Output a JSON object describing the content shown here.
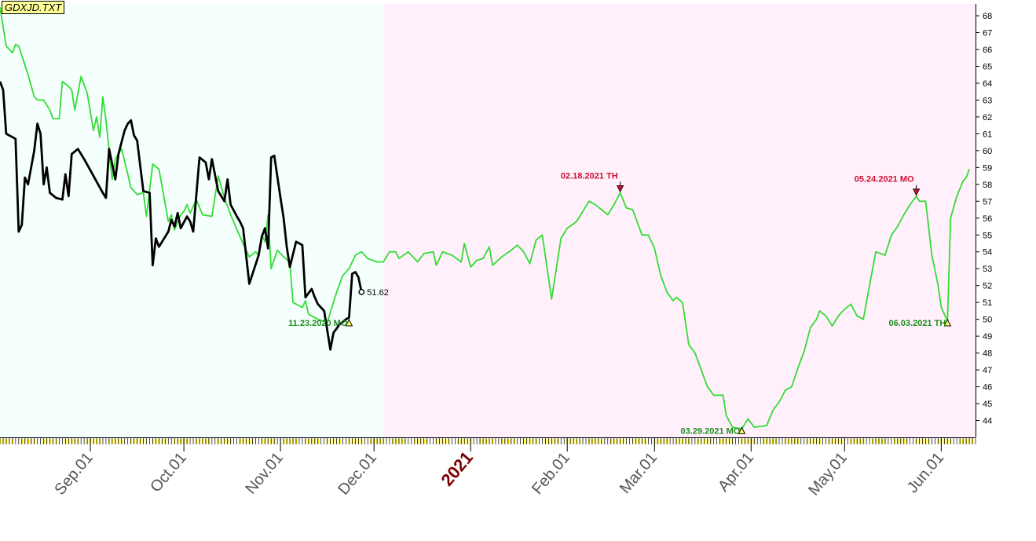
{
  "file_label": "GDXJD.TXT",
  "chart_data": {
    "type": "line",
    "x_unit": "date",
    "xlim": [
      "2020-08-03",
      "2021-06-12"
    ],
    "ylim": [
      43.0,
      68.7
    ],
    "y_ticks": [
      44,
      45,
      46,
      47,
      48,
      49,
      50,
      51,
      52,
      53,
      54,
      55,
      56,
      57,
      58,
      59,
      60,
      61,
      62,
      63,
      64,
      65,
      66,
      67,
      68
    ],
    "x_tick_labels": [
      {
        "date": "2020-09-01",
        "label": "Sep.01",
        "highlight": false
      },
      {
        "date": "2020-10-01",
        "label": "Oct.01",
        "highlight": false
      },
      {
        "date": "2020-11-01",
        "label": "Nov.01",
        "highlight": false
      },
      {
        "date": "2020-12-01",
        "label": "Dec.01",
        "highlight": false
      },
      {
        "date": "2021-01-01",
        "label": "2021",
        "highlight": true
      },
      {
        "date": "2021-02-01",
        "label": "Feb.01",
        "highlight": false
      },
      {
        "date": "2021-03-01",
        "label": "Mar.01",
        "highlight": false
      },
      {
        "date": "2021-04-01",
        "label": "Apr.01",
        "highlight": false
      },
      {
        "date": "2021-05-01",
        "label": "May.01",
        "highlight": false
      },
      {
        "date": "2021-06-01",
        "label": "Jun.01",
        "highlight": false
      }
    ],
    "regions": [
      {
        "from": "2020-08-03",
        "to": "2020-12-04",
        "color": "#f5fffe"
      },
      {
        "from": "2020-12-04",
        "to": "2021-06-12",
        "color": "#fff0fb"
      }
    ],
    "series": [
      {
        "color": "#000000",
        "points": [
          [
            "2020-08-03",
            64.1
          ],
          [
            "2020-08-04",
            63.6
          ],
          [
            "2020-08-05",
            61.0
          ],
          [
            "2020-08-07",
            60.8
          ],
          [
            "2020-08-08",
            60.7
          ],
          [
            "2020-08-09",
            55.2
          ],
          [
            "2020-08-10",
            55.6
          ],
          [
            "2020-08-11",
            58.4
          ],
          [
            "2020-08-12",
            58.0
          ],
          [
            "2020-08-14",
            60.0
          ],
          [
            "2020-08-15",
            61.6
          ],
          [
            "2020-08-16",
            61.0
          ],
          [
            "2020-08-17",
            58.0
          ],
          [
            "2020-08-18",
            59.0
          ],
          [
            "2020-08-19",
            57.5
          ],
          [
            "2020-08-21",
            57.2
          ],
          [
            "2020-08-23",
            57.1
          ],
          [
            "2020-08-24",
            58.6
          ],
          [
            "2020-08-25",
            57.3
          ],
          [
            "2020-08-26",
            59.8
          ],
          [
            "2020-08-28",
            60.1
          ],
          [
            "2020-08-30",
            59.5
          ],
          [
            "2020-09-02",
            58.5
          ],
          [
            "2020-09-05",
            57.5
          ],
          [
            "2020-09-06",
            57.2
          ],
          [
            "2020-09-07",
            60.1
          ],
          [
            "2020-09-09",
            58.3
          ],
          [
            "2020-09-10",
            59.8
          ],
          [
            "2020-09-12",
            61.2
          ],
          [
            "2020-09-13",
            61.6
          ],
          [
            "2020-09-14",
            61.8
          ],
          [
            "2020-09-15",
            60.9
          ],
          [
            "2020-09-16",
            60.6
          ],
          [
            "2020-09-18",
            57.6
          ],
          [
            "2020-09-20",
            57.5
          ],
          [
            "2020-09-21",
            53.2
          ],
          [
            "2020-09-22",
            54.8
          ],
          [
            "2020-09-23",
            54.3
          ],
          [
            "2020-09-26",
            55.2
          ],
          [
            "2020-09-27",
            55.9
          ],
          [
            "2020-09-28",
            55.5
          ],
          [
            "2020-09-29",
            56.3
          ],
          [
            "2020-09-30",
            55.4
          ],
          [
            "2020-10-02",
            56.1
          ],
          [
            "2020-10-03",
            55.8
          ],
          [
            "2020-10-04",
            55.2
          ],
          [
            "2020-10-06",
            59.6
          ],
          [
            "2020-10-08",
            59.3
          ],
          [
            "2020-10-09",
            58.3
          ],
          [
            "2020-10-10",
            59.5
          ],
          [
            "2020-10-12",
            57.6
          ],
          [
            "2020-10-14",
            57.0
          ],
          [
            "2020-10-15",
            58.3
          ],
          [
            "2020-10-16",
            56.8
          ],
          [
            "2020-10-18",
            56.1
          ],
          [
            "2020-10-19",
            55.8
          ],
          [
            "2020-10-20",
            55.4
          ],
          [
            "2020-10-22",
            52.1
          ],
          [
            "2020-10-25",
            53.8
          ],
          [
            "2020-10-26",
            54.9
          ],
          [
            "2020-10-27",
            55.4
          ],
          [
            "2020-10-28",
            54.2
          ],
          [
            "2020-10-29",
            59.6
          ],
          [
            "2020-10-30",
            59.7
          ],
          [
            "2020-11-01",
            57.2
          ],
          [
            "2020-11-02",
            56.0
          ],
          [
            "2020-11-03",
            54.3
          ],
          [
            "2020-11-04",
            53.1
          ],
          [
            "2020-11-06",
            54.6
          ],
          [
            "2020-11-08",
            54.4
          ],
          [
            "2020-11-09",
            51.3
          ],
          [
            "2020-11-11",
            51.8
          ],
          [
            "2020-11-12",
            51.3
          ],
          [
            "2020-11-13",
            50.9
          ],
          [
            "2020-11-15",
            50.5
          ],
          [
            "2020-11-17",
            48.2
          ],
          [
            "2020-11-18",
            49.2
          ],
          [
            "2020-11-20",
            49.7
          ],
          [
            "2020-11-22",
            50.0
          ],
          [
            "2020-11-23",
            50.1
          ],
          [
            "2020-11-24",
            52.7
          ],
          [
            "2020-11-25",
            52.8
          ],
          [
            "2020-11-26",
            52.5
          ],
          [
            "2020-11-27",
            51.62
          ]
        ]
      },
      {
        "color": "#33dd33",
        "points": [
          [
            "2020-08-03",
            68.5
          ],
          [
            "2020-08-05",
            66.2
          ],
          [
            "2020-08-07",
            65.8
          ],
          [
            "2020-08-08",
            66.3
          ],
          [
            "2020-08-09",
            66.2
          ],
          [
            "2020-08-12",
            64.5
          ],
          [
            "2020-08-14",
            63.2
          ],
          [
            "2020-08-15",
            63.0
          ],
          [
            "2020-08-17",
            63.0
          ],
          [
            "2020-08-19",
            62.4
          ],
          [
            "2020-08-20",
            61.9
          ],
          [
            "2020-08-22",
            61.9
          ],
          [
            "2020-08-23",
            64.1
          ],
          [
            "2020-08-25",
            63.8
          ],
          [
            "2020-08-26",
            63.6
          ],
          [
            "2020-08-27",
            62.4
          ],
          [
            "2020-08-29",
            64.4
          ],
          [
            "2020-08-31",
            63.4
          ],
          [
            "2020-09-02",
            61.2
          ],
          [
            "2020-09-03",
            62.0
          ],
          [
            "2020-09-04",
            60.8
          ],
          [
            "2020-09-05",
            63.2
          ],
          [
            "2020-09-06",
            61.8
          ],
          [
            "2020-09-08",
            58.3
          ],
          [
            "2020-09-09",
            59.5
          ],
          [
            "2020-09-10",
            59.8
          ],
          [
            "2020-09-11",
            60.1
          ],
          [
            "2020-09-13",
            58.6
          ],
          [
            "2020-09-14",
            57.8
          ],
          [
            "2020-09-16",
            57.4
          ],
          [
            "2020-09-18",
            57.5
          ],
          [
            "2020-09-19",
            56.1
          ],
          [
            "2020-09-21",
            59.2
          ],
          [
            "2020-09-23",
            58.9
          ],
          [
            "2020-09-26",
            55.8
          ],
          [
            "2020-09-27",
            56.2
          ],
          [
            "2020-09-28",
            55.3
          ],
          [
            "2020-09-30",
            56.2
          ],
          [
            "2020-10-01",
            56.4
          ],
          [
            "2020-10-02",
            56.8
          ],
          [
            "2020-10-03",
            56.3
          ],
          [
            "2020-10-05",
            57.1
          ],
          [
            "2020-10-07",
            56.2
          ],
          [
            "2020-10-10",
            56.1
          ],
          [
            "2020-10-12",
            58.5
          ],
          [
            "2020-10-14",
            57.2
          ],
          [
            "2020-10-16",
            56.2
          ],
          [
            "2020-10-19",
            54.9
          ],
          [
            "2020-10-22",
            53.7
          ],
          [
            "2020-10-24",
            54.0
          ],
          [
            "2020-10-25",
            53.8
          ],
          [
            "2020-10-26",
            55.0
          ],
          [
            "2020-10-27",
            54.6
          ],
          [
            "2020-10-28",
            56.2
          ],
          [
            "2020-10-29",
            53.0
          ],
          [
            "2020-10-31",
            54.1
          ],
          [
            "2020-11-02",
            53.7
          ],
          [
            "2020-11-04",
            53.4
          ],
          [
            "2020-11-05",
            51.0
          ],
          [
            "2020-11-08",
            50.7
          ],
          [
            "2020-11-09",
            51.1
          ],
          [
            "2020-11-10",
            50.3
          ],
          [
            "2020-11-13",
            50.0
          ],
          [
            "2020-11-16",
            49.8
          ],
          [
            "2020-11-19",
            51.6
          ],
          [
            "2020-11-21",
            52.6
          ],
          [
            "2020-11-23",
            53.0
          ],
          [
            "2020-11-25",
            53.8
          ],
          [
            "2020-11-27",
            54.0
          ],
          [
            "2020-11-29",
            53.6
          ],
          [
            "2020-12-02",
            53.4
          ],
          [
            "2020-12-04",
            53.4
          ],
          [
            "2020-12-06",
            54.0
          ],
          [
            "2020-12-08",
            54.0
          ],
          [
            "2020-12-09",
            53.6
          ],
          [
            "2020-12-12",
            54.0
          ],
          [
            "2020-12-14",
            53.6
          ],
          [
            "2020-12-15",
            53.4
          ],
          [
            "2020-12-17",
            53.9
          ],
          [
            "2020-12-20",
            54.0
          ],
          [
            "2020-12-21",
            53.2
          ],
          [
            "2020-12-23",
            54.0
          ],
          [
            "2020-12-26",
            53.8
          ],
          [
            "2020-12-29",
            53.4
          ],
          [
            "2020-12-30",
            54.5
          ],
          [
            "2021-01-01",
            53.1
          ],
          [
            "2021-01-03",
            53.5
          ],
          [
            "2021-01-05",
            53.6
          ],
          [
            "2021-01-07",
            54.3
          ],
          [
            "2021-01-08",
            53.2
          ],
          [
            "2021-01-11",
            53.7
          ],
          [
            "2021-01-14",
            54.1
          ],
          [
            "2021-01-16",
            54.4
          ],
          [
            "2021-01-18",
            54.0
          ],
          [
            "2021-01-20",
            53.3
          ],
          [
            "2021-01-22",
            54.7
          ],
          [
            "2021-01-24",
            55.0
          ],
          [
            "2021-01-27",
            51.2
          ],
          [
            "2021-01-30",
            54.8
          ],
          [
            "2021-02-01",
            55.4
          ],
          [
            "2021-02-04",
            55.8
          ],
          [
            "2021-02-06",
            56.4
          ],
          [
            "2021-02-08",
            57.0
          ],
          [
            "2021-02-10",
            56.8
          ],
          [
            "2021-02-12",
            56.5
          ],
          [
            "2021-02-14",
            56.2
          ],
          [
            "2021-02-16",
            56.8
          ],
          [
            "2021-02-18",
            57.5
          ],
          [
            "2021-02-20",
            56.6
          ],
          [
            "2021-02-22",
            56.5
          ],
          [
            "2021-02-25",
            55.0
          ],
          [
            "2021-02-27",
            55.0
          ],
          [
            "2021-03-01",
            54.2
          ],
          [
            "2021-03-03",
            52.6
          ],
          [
            "2021-03-05",
            51.6
          ],
          [
            "2021-03-07",
            51.1
          ],
          [
            "2021-03-08",
            51.3
          ],
          [
            "2021-03-10",
            51.0
          ],
          [
            "2021-03-12",
            48.5
          ],
          [
            "2021-03-14",
            48.0
          ],
          [
            "2021-03-16",
            47.0
          ],
          [
            "2021-03-18",
            46.0
          ],
          [
            "2021-03-20",
            45.5
          ],
          [
            "2021-03-23",
            45.5
          ],
          [
            "2021-03-24",
            44.3
          ],
          [
            "2021-03-26",
            43.6
          ],
          [
            "2021-03-29",
            43.5
          ],
          [
            "2021-03-31",
            44.1
          ],
          [
            "2021-04-02",
            43.6
          ],
          [
            "2021-04-06",
            43.7
          ],
          [
            "2021-04-08",
            44.6
          ],
          [
            "2021-04-10",
            45.1
          ],
          [
            "2021-04-12",
            45.8
          ],
          [
            "2021-04-14",
            46.0
          ],
          [
            "2021-04-16",
            47.1
          ],
          [
            "2021-04-18",
            48.1
          ],
          [
            "2021-04-20",
            49.5
          ],
          [
            "2021-04-22",
            50.0
          ],
          [
            "2021-04-23",
            50.5
          ],
          [
            "2021-04-25",
            50.2
          ],
          [
            "2021-04-27",
            49.6
          ],
          [
            "2021-04-29",
            50.2
          ],
          [
            "2021-05-01",
            50.6
          ],
          [
            "2021-05-03",
            50.9
          ],
          [
            "2021-05-05",
            50.2
          ],
          [
            "2021-05-07",
            50.0
          ],
          [
            "2021-05-08",
            51.0
          ],
          [
            "2021-05-11",
            54.0
          ],
          [
            "2021-05-14",
            53.8
          ],
          [
            "2021-05-16",
            55.0
          ],
          [
            "2021-05-18",
            55.5
          ],
          [
            "2021-05-20",
            56.2
          ],
          [
            "2021-05-22",
            56.8
          ],
          [
            "2021-05-24",
            57.3
          ],
          [
            "2021-05-25",
            57.0
          ],
          [
            "2021-05-27",
            57.0
          ],
          [
            "2021-05-29",
            53.8
          ],
          [
            "2021-05-31",
            52.0
          ],
          [
            "2021-06-01",
            50.7
          ],
          [
            "2021-06-03",
            49.9
          ],
          [
            "2021-06-04",
            56.0
          ],
          [
            "2021-06-06",
            57.3
          ],
          [
            "2021-06-08",
            58.2
          ],
          [
            "2021-06-09",
            58.4
          ],
          [
            "2021-06-10",
            58.9
          ]
        ]
      }
    ],
    "markers": [
      {
        "date": "2020-11-23",
        "y": 49.8,
        "shape": "triangle-up",
        "color": "#1a8c1a",
        "label": "11.23.2020 MO",
        "label_side": "left"
      },
      {
        "date": "2021-02-18",
        "y": 57.6,
        "shape": "arrow-down",
        "color": "#cc1133",
        "label": "02.18.2021 TH",
        "label_side": "left"
      },
      {
        "date": "2021-03-29",
        "y": 43.4,
        "shape": "triangle-up",
        "color": "#1a8c1a",
        "label": "03.29.2021 MO",
        "label_side": "left"
      },
      {
        "date": "2021-05-24",
        "y": 57.4,
        "shape": "arrow-down",
        "color": "#cc1133",
        "label": "05.24.2021 MO",
        "label_side": "left"
      },
      {
        "date": "2021-06-03",
        "y": 49.8,
        "shape": "triangle-up",
        "color": "#1a8c1a",
        "label": "06.03.2021 TH",
        "label_side": "left"
      }
    ],
    "end_label": {
      "date": "2020-11-27",
      "y": 51.62,
      "label": "51.62"
    }
  }
}
